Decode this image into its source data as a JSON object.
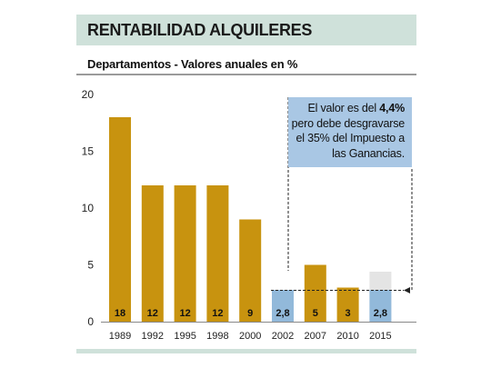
{
  "header": {
    "title": "RENTABILIDAD ALQUILERES",
    "subtitle": "Departamentos - Valores anuales en %"
  },
  "callout": {
    "text_before": "El valor es del ",
    "highlight": "4,4%",
    "text_after": " pero debe desgravarse el 35% del Impuesto a las Ganancias."
  },
  "colors": {
    "gold": "#c8930f",
    "blue": "#92b9da",
    "gray": "#e4e4e4",
    "band": "#cfe1da",
    "callout": "#a9c7e4"
  },
  "chart_data": {
    "type": "bar",
    "categories": [
      "1989",
      "1992",
      "1995",
      "1998",
      "2000",
      "2002",
      "2007",
      "2010",
      "2015"
    ],
    "values": [
      18,
      12,
      12,
      12,
      9,
      2.8,
      5,
      3,
      2.8
    ],
    "value_labels": [
      "18",
      "12",
      "12",
      "12",
      "9",
      "2,8",
      "5",
      "3",
      "2,8"
    ],
    "bar_colors": [
      "gold",
      "gold",
      "gold",
      "gold",
      "gold",
      "blue",
      "gold",
      "gold",
      "blue"
    ],
    "gross_2015": 4.4,
    "reference_line": 2.8,
    "yticks": [
      "0",
      "5",
      "10",
      "15",
      "20"
    ],
    "ylim": [
      0,
      20
    ],
    "grid": false,
    "legend": "none"
  }
}
